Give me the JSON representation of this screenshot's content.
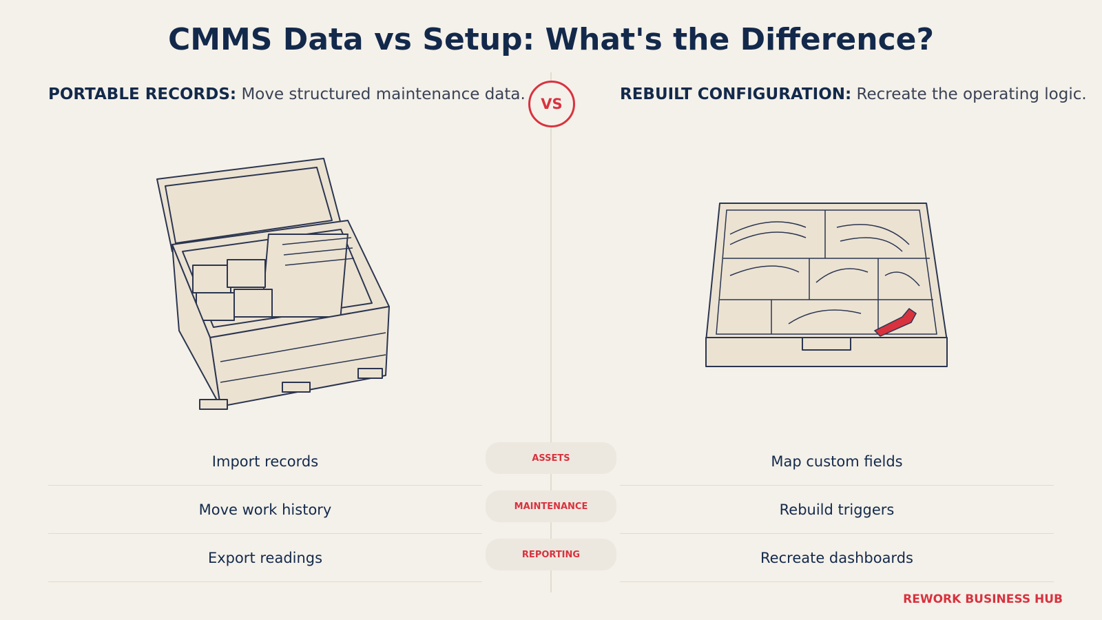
{
  "title": "CMMS Data vs Setup: What's the Difference?",
  "left": {
    "label": "PORTABLE RECORDS:",
    "text": "Move structured maintenance data."
  },
  "vs": "VS",
  "right": {
    "label": "REBUILT CONFIGURATION:",
    "text": "Recreate the operating logic."
  },
  "rows": [
    {
      "left": "Import records",
      "category": "ASSETS",
      "right": "Map custom fields"
    },
    {
      "left": "Move work history",
      "category": "MAINTENANCE",
      "right": "Rebuild triggers"
    },
    {
      "left": "Export readings",
      "category": "REPORTING",
      "right": "Recreate dashboards"
    }
  ],
  "brand": "REWORK BUSINESS HUB"
}
